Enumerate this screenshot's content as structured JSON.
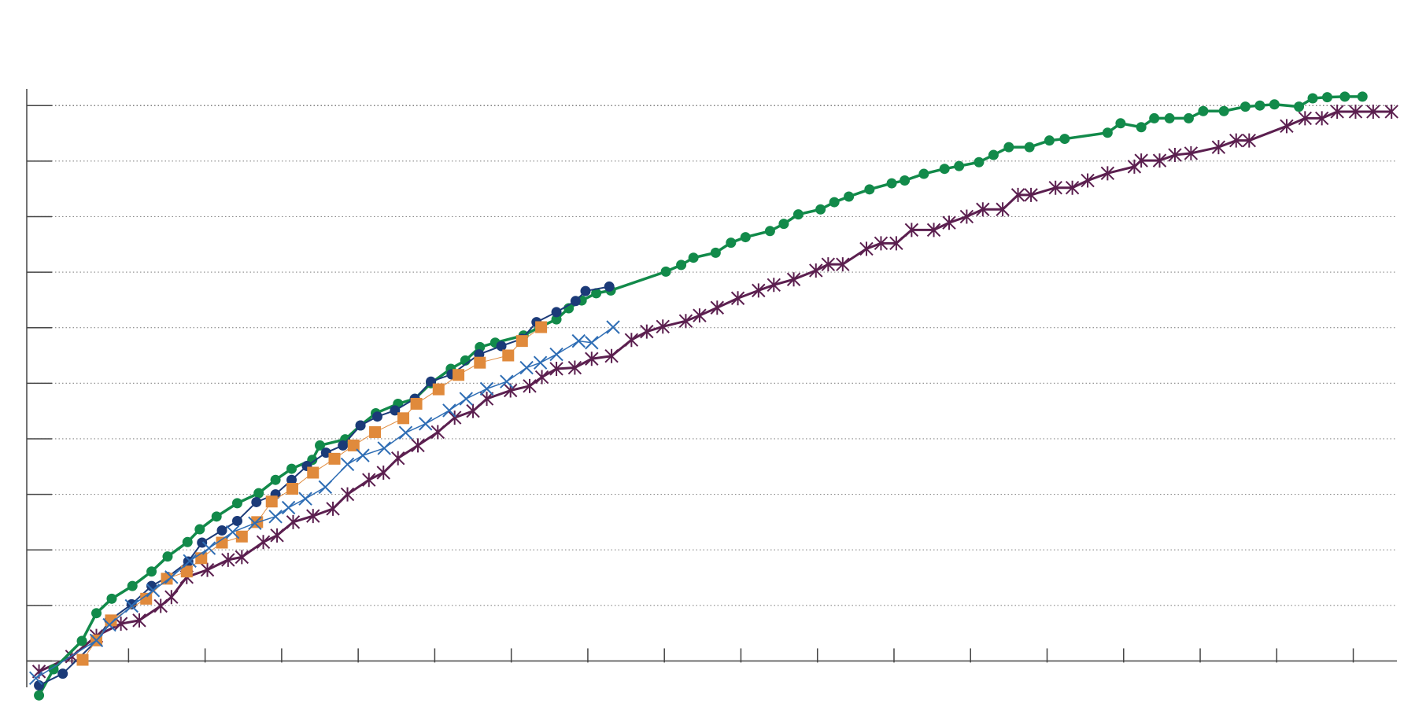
{
  "chart_data": {
    "type": "line",
    "xlim": [
      -0.33,
      17.57
    ],
    "xticks": [
      1,
      2,
      3,
      4,
      5,
      6,
      7,
      8,
      9,
      10,
      11,
      12,
      13,
      14,
      15,
      16,
      17
    ],
    "ylim": [
      -0.9,
      10.3
    ],
    "yticks": [
      0,
      1,
      2,
      3,
      4,
      5,
      6,
      7,
      8,
      9,
      10
    ],
    "grid": true,
    "series": [
      {
        "color": "#5b1f4f",
        "marker": "asterisk",
        "width": 3,
        "x": [
          -0.17,
          0.26,
          0.58,
          0.9,
          1.14,
          1.42,
          1.56,
          1.76,
          2.03,
          2.3,
          2.48,
          2.76,
          2.94,
          3.15,
          3.41,
          3.67,
          3.86,
          4.14,
          4.33,
          4.52,
          4.78,
          5.04,
          5.26,
          5.5,
          5.68,
          5.99,
          6.24,
          6.4,
          6.59,
          6.83,
          7.05,
          7.31,
          7.57,
          7.77,
          7.98,
          8.28,
          8.46,
          8.69,
          8.96,
          9.23,
          9.43,
          9.69,
          9.98,
          10.14,
          10.33,
          10.64,
          10.83,
          11.03,
          11.23,
          11.52,
          11.72,
          11.95,
          12.16,
          12.42,
          12.62,
          12.79,
          13.11,
          13.33,
          13.53,
          13.79,
          14.14,
          14.23,
          14.47,
          14.67,
          14.88,
          15.24,
          15.47,
          15.64,
          16.13,
          16.37,
          16.59,
          16.79,
          17.03,
          17.26,
          17.5
        ],
        "values": [
          -0.19,
          0.08,
          0.45,
          0.67,
          0.73,
          0.99,
          1.15,
          1.51,
          1.64,
          1.82,
          1.87,
          2.14,
          2.26,
          2.5,
          2.61,
          2.74,
          3.0,
          3.26,
          3.39,
          3.65,
          3.88,
          4.12,
          4.38,
          4.5,
          4.72,
          4.87,
          4.95,
          5.11,
          5.26,
          5.28,
          5.44,
          5.49,
          5.78,
          5.93,
          6.02,
          6.12,
          6.22,
          6.36,
          6.53,
          6.67,
          6.77,
          6.87,
          7.03,
          7.14,
          7.14,
          7.42,
          7.52,
          7.52,
          7.76,
          7.76,
          7.89,
          8.0,
          8.13,
          8.13,
          8.39,
          8.39,
          8.52,
          8.52,
          8.65,
          8.78,
          8.9,
          9.01,
          9.01,
          9.11,
          9.14,
          9.25,
          9.37,
          9.37,
          9.63,
          9.77,
          9.77,
          9.89,
          9.89,
          9.89,
          9.89
        ]
      },
      {
        "color": "#128a4a",
        "marker": "circle",
        "width": 3.5,
        "x": [
          -0.17,
          0.02,
          0.39,
          0.58,
          0.78,
          1.05,
          1.3,
          1.51,
          1.77,
          1.93,
          2.15,
          2.42,
          2.7,
          2.92,
          3.13,
          3.4,
          3.5,
          3.83,
          4.03,
          4.23,
          4.52,
          4.74,
          4.95,
          5.21,
          5.4,
          5.59,
          5.79,
          6.16,
          6.37,
          6.59,
          6.75,
          6.92,
          7.11,
          7.3,
          8.02,
          8.22,
          8.38,
          8.67,
          8.87,
          9.06,
          9.38,
          9.56,
          9.75,
          10.04,
          10.22,
          10.41,
          10.68,
          10.97,
          11.14,
          11.39,
          11.66,
          11.85,
          12.11,
          12.3,
          12.5,
          12.77,
          13.03,
          13.23,
          13.79,
          13.96,
          14.23,
          14.4,
          14.6,
          14.85,
          15.04,
          15.31,
          15.59,
          15.78,
          15.97,
          16.29,
          16.47,
          16.66,
          16.89,
          17.12
        ],
        "values": [
          -0.62,
          -0.15,
          0.36,
          0.86,
          1.12,
          1.35,
          1.61,
          1.88,
          2.14,
          2.37,
          2.6,
          2.84,
          3.02,
          3.26,
          3.46,
          3.62,
          3.88,
          3.99,
          4.24,
          4.46,
          4.63,
          4.72,
          5.0,
          5.26,
          5.41,
          5.65,
          5.73,
          5.86,
          6.01,
          6.15,
          6.35,
          6.49,
          6.62,
          6.67,
          7.01,
          7.13,
          7.26,
          7.35,
          7.53,
          7.63,
          7.74,
          7.87,
          8.04,
          8.13,
          8.26,
          8.36,
          8.49,
          8.6,
          8.65,
          8.77,
          8.86,
          8.91,
          8.98,
          9.11,
          9.25,
          9.25,
          9.37,
          9.4,
          9.51,
          9.68,
          9.61,
          9.77,
          9.77,
          9.77,
          9.9,
          9.9,
          9.98,
          10.0,
          10.02,
          9.98,
          10.13,
          10.15,
          10.16,
          10.16
        ]
      },
      {
        "color": "#1b3a78",
        "marker": "circle",
        "width": 2,
        "x": [
          -0.17,
          0.14,
          0.58,
          0.75,
          1.04,
          1.3,
          1.51,
          1.78,
          1.96,
          2.22,
          2.42,
          2.67,
          2.92,
          3.13,
          3.33,
          3.58,
          3.8,
          4.03,
          4.25,
          4.48,
          4.74,
          4.95,
          5.22,
          5.58,
          5.87,
          6.14,
          6.33,
          6.59,
          6.84,
          6.97,
          7.28
        ],
        "values": [
          -0.44,
          -0.23,
          0.36,
          0.73,
          1.02,
          1.35,
          1.51,
          1.79,
          2.13,
          2.35,
          2.52,
          2.86,
          3.0,
          3.26,
          3.51,
          3.75,
          3.88,
          4.24,
          4.4,
          4.51,
          4.72,
          5.03,
          5.16,
          5.52,
          5.67,
          5.8,
          6.1,
          6.28,
          6.48,
          6.66,
          6.74
        ]
      },
      {
        "color": "#e08a3c",
        "marker": "square",
        "width": 1,
        "x": [
          0.4,
          0.58,
          0.77,
          1.23,
          1.5,
          1.76,
          1.95,
          2.22,
          2.48,
          2.68,
          2.87,
          3.14,
          3.41,
          3.69,
          3.94,
          4.22,
          4.59,
          4.76,
          5.05,
          5.31,
          5.59,
          5.96,
          6.14,
          6.39
        ],
        "values": [
          0.02,
          0.37,
          0.73,
          1.12,
          1.48,
          1.61,
          1.85,
          2.13,
          2.24,
          2.5,
          2.87,
          3.1,
          3.39,
          3.64,
          3.88,
          4.12,
          4.37,
          4.63,
          4.89,
          5.15,
          5.37,
          5.5,
          5.76,
          6.01
        ]
      },
      {
        "color": "#2e6db4",
        "marker": "x",
        "width": 1.5,
        "x": [
          -0.21,
          0.58,
          0.75,
          1.04,
          1.32,
          1.56,
          1.8,
          2.05,
          2.36,
          2.65,
          2.92,
          3.09,
          3.31,
          3.57,
          3.86,
          4.06,
          4.34,
          4.62,
          4.88,
          5.19,
          5.41,
          5.68,
          5.94,
          6.2,
          6.38,
          6.59,
          6.88,
          7.05,
          7.33
        ],
        "values": [
          -0.31,
          0.37,
          0.65,
          0.99,
          1.27,
          1.51,
          1.8,
          2.03,
          2.32,
          2.48,
          2.6,
          2.76,
          2.92,
          3.13,
          3.54,
          3.7,
          3.83,
          4.11,
          4.27,
          4.51,
          4.72,
          4.9,
          5.03,
          5.28,
          5.37,
          5.52,
          5.76,
          5.73,
          6.01
        ]
      }
    ]
  }
}
